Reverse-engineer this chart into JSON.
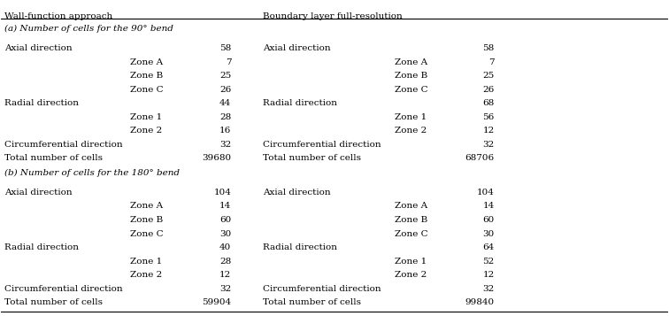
{
  "title_left": "Wall-function approach",
  "title_right": "Boundary layer full-resolution",
  "section_a_header": "(a) Number of cells for the 90° bend",
  "section_b_header": "(b) Number of cells for the 180° bend",
  "rows": [
    {
      "label": "(a) Number of cells for the 90° bend",
      "type": "section_header",
      "col1_sub": null,
      "col1_val": null,
      "col2_label": null,
      "col2_sub": null,
      "col2_val": null
    },
    {
      "label": "Axial direction",
      "type": "main",
      "col1_sub": null,
      "col1_val": "58",
      "col2_label": "Axial direction",
      "col2_sub": null,
      "col2_val": "58"
    },
    {
      "label": null,
      "type": "sub",
      "col1_sub": "Zone A",
      "col1_val": "7",
      "col2_label": null,
      "col2_sub": "Zone A",
      "col2_val": "7"
    },
    {
      "label": null,
      "type": "sub",
      "col1_sub": "Zone B",
      "col1_val": "25",
      "col2_label": null,
      "col2_sub": "Zone B",
      "col2_val": "25"
    },
    {
      "label": null,
      "type": "sub",
      "col1_sub": "Zone C",
      "col1_val": "26",
      "col2_label": null,
      "col2_sub": "Zone C",
      "col2_val": "26"
    },
    {
      "label": "Radial direction",
      "type": "main",
      "col1_sub": null,
      "col1_val": "44",
      "col2_label": "Radial direction",
      "col2_sub": null,
      "col2_val": "68"
    },
    {
      "label": null,
      "type": "sub",
      "col1_sub": "Zone 1",
      "col1_val": "28",
      "col2_label": null,
      "col2_sub": "Zone 1",
      "col2_val": "56"
    },
    {
      "label": null,
      "type": "sub",
      "col1_sub": "Zone 2",
      "col1_val": "16",
      "col2_label": null,
      "col2_sub": "Zone 2",
      "col2_val": "12"
    },
    {
      "label": "Circumferential direction",
      "type": "main",
      "col1_sub": null,
      "col1_val": "32",
      "col2_label": "Circumferential direction",
      "col2_sub": null,
      "col2_val": "32"
    },
    {
      "label": "Total number of cells",
      "type": "main",
      "col1_sub": null,
      "col1_val": "39680",
      "col2_label": "Total number of cells",
      "col2_sub": null,
      "col2_val": "68706"
    },
    {
      "label": "(b) Number of cells for the 180° bend",
      "type": "section_header",
      "col1_sub": null,
      "col1_val": null,
      "col2_label": null,
      "col2_sub": null,
      "col2_val": null
    },
    {
      "label": "Axial direction",
      "type": "main",
      "col1_sub": null,
      "col1_val": "104",
      "col2_label": "Axial direction",
      "col2_sub": null,
      "col2_val": "104"
    },
    {
      "label": null,
      "type": "sub",
      "col1_sub": "Zone A",
      "col1_val": "14",
      "col2_label": null,
      "col2_sub": "Zone A",
      "col2_val": "14"
    },
    {
      "label": null,
      "type": "sub",
      "col1_sub": "Zone B",
      "col1_val": "60",
      "col2_label": null,
      "col2_sub": "Zone B",
      "col2_val": "60"
    },
    {
      "label": null,
      "type": "sub",
      "col1_sub": "Zone C",
      "col1_val": "30",
      "col2_label": null,
      "col2_sub": "Zone C",
      "col2_val": "30"
    },
    {
      "label": "Radial direction",
      "type": "main",
      "col1_sub": null,
      "col1_val": "40",
      "col2_label": "Radial direction",
      "col2_sub": null,
      "col2_val": "64"
    },
    {
      "label": null,
      "type": "sub",
      "col1_sub": "Zone 1",
      "col1_val": "28",
      "col2_label": null,
      "col2_sub": "Zone 1",
      "col2_val": "52"
    },
    {
      "label": null,
      "type": "sub",
      "col1_sub": "Zone 2",
      "col1_val": "12",
      "col2_label": null,
      "col2_sub": "Zone 2",
      "col2_val": "12"
    },
    {
      "label": "Circumferential direction",
      "type": "main",
      "col1_sub": null,
      "col1_val": "32",
      "col2_label": "Circumferential direction",
      "col2_sub": null,
      "col2_val": "32"
    },
    {
      "label": "Total number of cells",
      "type": "main",
      "col1_sub": null,
      "col1_val": "59904",
      "col2_label": "Total number of cells",
      "col2_sub": null,
      "col2_val": "99840"
    }
  ],
  "font_size": 7.5,
  "header_font_size": 7.5,
  "section_header_font_size": 7.5,
  "bg_color": "#ffffff",
  "text_color": "#000000",
  "line_color": "#000000"
}
